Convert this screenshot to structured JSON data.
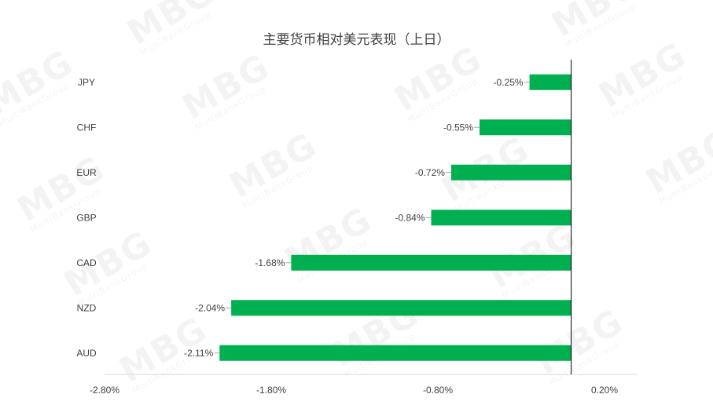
{
  "chart_data": {
    "type": "bar",
    "orientation": "horizontal",
    "title": "主要货币相对美元表现（上日）",
    "categories": [
      "JPY",
      "CHF",
      "EUR",
      "GBP",
      "CAD",
      "NZD",
      "AUD"
    ],
    "values": [
      -0.25,
      -0.55,
      -0.72,
      -0.84,
      -1.68,
      -2.04,
      -2.11
    ],
    "value_labels": [
      "-0.25%",
      "-0.55%",
      "-0.72%",
      "-0.84%",
      "-1.68%",
      "-2.04%",
      "-2.11%"
    ],
    "xlim": [
      -2.8,
      0.2
    ],
    "xticks": [
      -2.8,
      -1.8,
      -0.8,
      0.2
    ],
    "xtick_labels": [
      "-2.80%",
      "-1.80%",
      "-0.80%",
      "0.20%"
    ],
    "bar_color": "#00b050",
    "grid": false,
    "legend": "none"
  },
  "watermark": {
    "text": "MBG",
    "subtext": "MultiBankGroup"
  }
}
